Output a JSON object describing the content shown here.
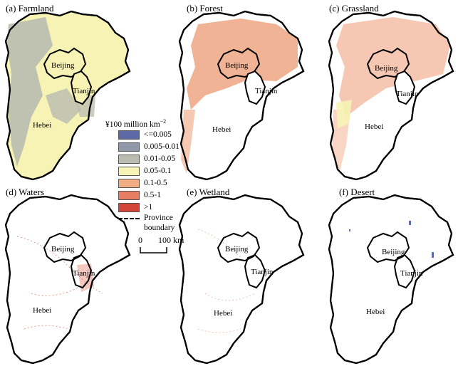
{
  "panels": [
    {
      "id": "farmland",
      "title": "(a) Farmland",
      "fill": "#f6f3b5",
      "accent": "#b8bcae"
    },
    {
      "id": "forest",
      "title": "(b) Forest",
      "fill": "none",
      "accent": "#ec9a72"
    },
    {
      "id": "grassland",
      "title": "(c) Grassland",
      "fill": "none",
      "accent": "#f0a27e"
    },
    {
      "id": "waters",
      "title": "(d) Waters",
      "fill": "none",
      "accent": "#e0604a"
    },
    {
      "id": "wetland",
      "title": "(e) Wetland",
      "fill": "none",
      "accent": "#f0a88c"
    },
    {
      "id": "desert",
      "title": "(f) Desert",
      "fill": "none",
      "accent": "#5c6ea8"
    }
  ],
  "places": {
    "beijing": "Beijing",
    "tianjin": "Tianjin",
    "hebei": "Hebei"
  },
  "legend": {
    "title_main": "¥100 million km",
    "title_sup": "−2",
    "items": [
      {
        "label": "<=0.005",
        "color": "#5b6aa6"
      },
      {
        "label": "0.005-0.01",
        "color": "#8f99aa"
      },
      {
        "label": "0.01-0.05",
        "color": "#b9bcaf"
      },
      {
        "label": "0.05-0.1",
        "color": "#f6f3b5"
      },
      {
        "label": "0.1-0.5",
        "color": "#f2ad85"
      },
      {
        "label": "0.5-1",
        "color": "#e77e64"
      },
      {
        "label": ">1",
        "color": "#d2453a"
      }
    ],
    "boundary_label_1": "Province",
    "boundary_label_2": "boundary"
  },
  "scale": {
    "zero": "0",
    "distance": "100 km"
  }
}
